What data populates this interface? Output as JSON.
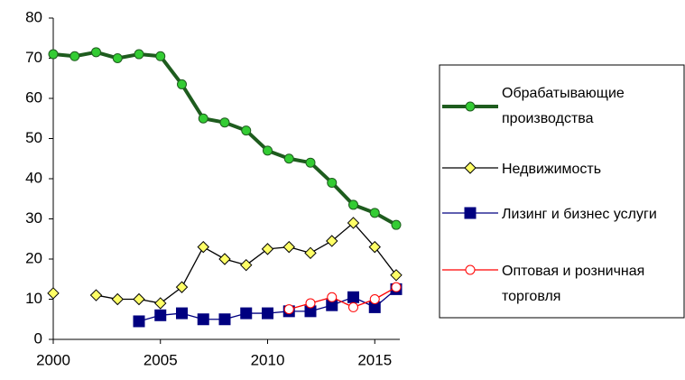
{
  "chart_data": {
    "type": "line",
    "x": [
      2000,
      2001,
      2002,
      2003,
      2004,
      2005,
      2006,
      2007,
      2008,
      2009,
      2010,
      2011,
      2012,
      2013,
      2014,
      2015,
      2016
    ],
    "xlim": [
      2000,
      2016
    ],
    "xticks": [
      2000,
      2005,
      2010,
      2015
    ],
    "ylim": [
      0,
      80
    ],
    "yticks": [
      0,
      10,
      20,
      30,
      40,
      50,
      60,
      70,
      80
    ],
    "grid": false,
    "legend": "right",
    "series": [
      {
        "name": "Обрабатывающие производства",
        "color": "#1e5c1e",
        "marker": "circle",
        "marker_color": "#33cc33",
        "values": [
          71,
          70.5,
          71.5,
          70,
          71,
          70.5,
          63.5,
          55,
          54,
          52,
          47,
          45,
          44,
          39,
          33.5,
          31.5,
          28.5
        ]
      },
      {
        "name": "Недвижимость",
        "color": "#000000",
        "marker": "diamond",
        "marker_color": "#ffff66",
        "values": [
          11.5,
          null,
          11,
          10,
          10,
          9,
          13,
          23,
          20,
          18.5,
          22.5,
          23,
          21.5,
          24.5,
          29,
          23,
          16
        ]
      },
      {
        "name": "Лизинг и бизнес услуги",
        "color": "#000080",
        "marker": "square",
        "marker_color": "#000080",
        "values": [
          null,
          null,
          null,
          null,
          4.5,
          6,
          6.5,
          5,
          5,
          6.5,
          6.5,
          7,
          7,
          8.5,
          10.5,
          8,
          12.5
        ]
      },
      {
        "name": "Оптовая и розничная торговля",
        "color": "#ff0000",
        "marker": "circle",
        "marker_color": "#ffffff",
        "values": [
          null,
          null,
          null,
          null,
          null,
          null,
          null,
          null,
          null,
          null,
          null,
          7.5,
          9,
          10.5,
          8,
          10,
          13
        ]
      }
    ]
  }
}
